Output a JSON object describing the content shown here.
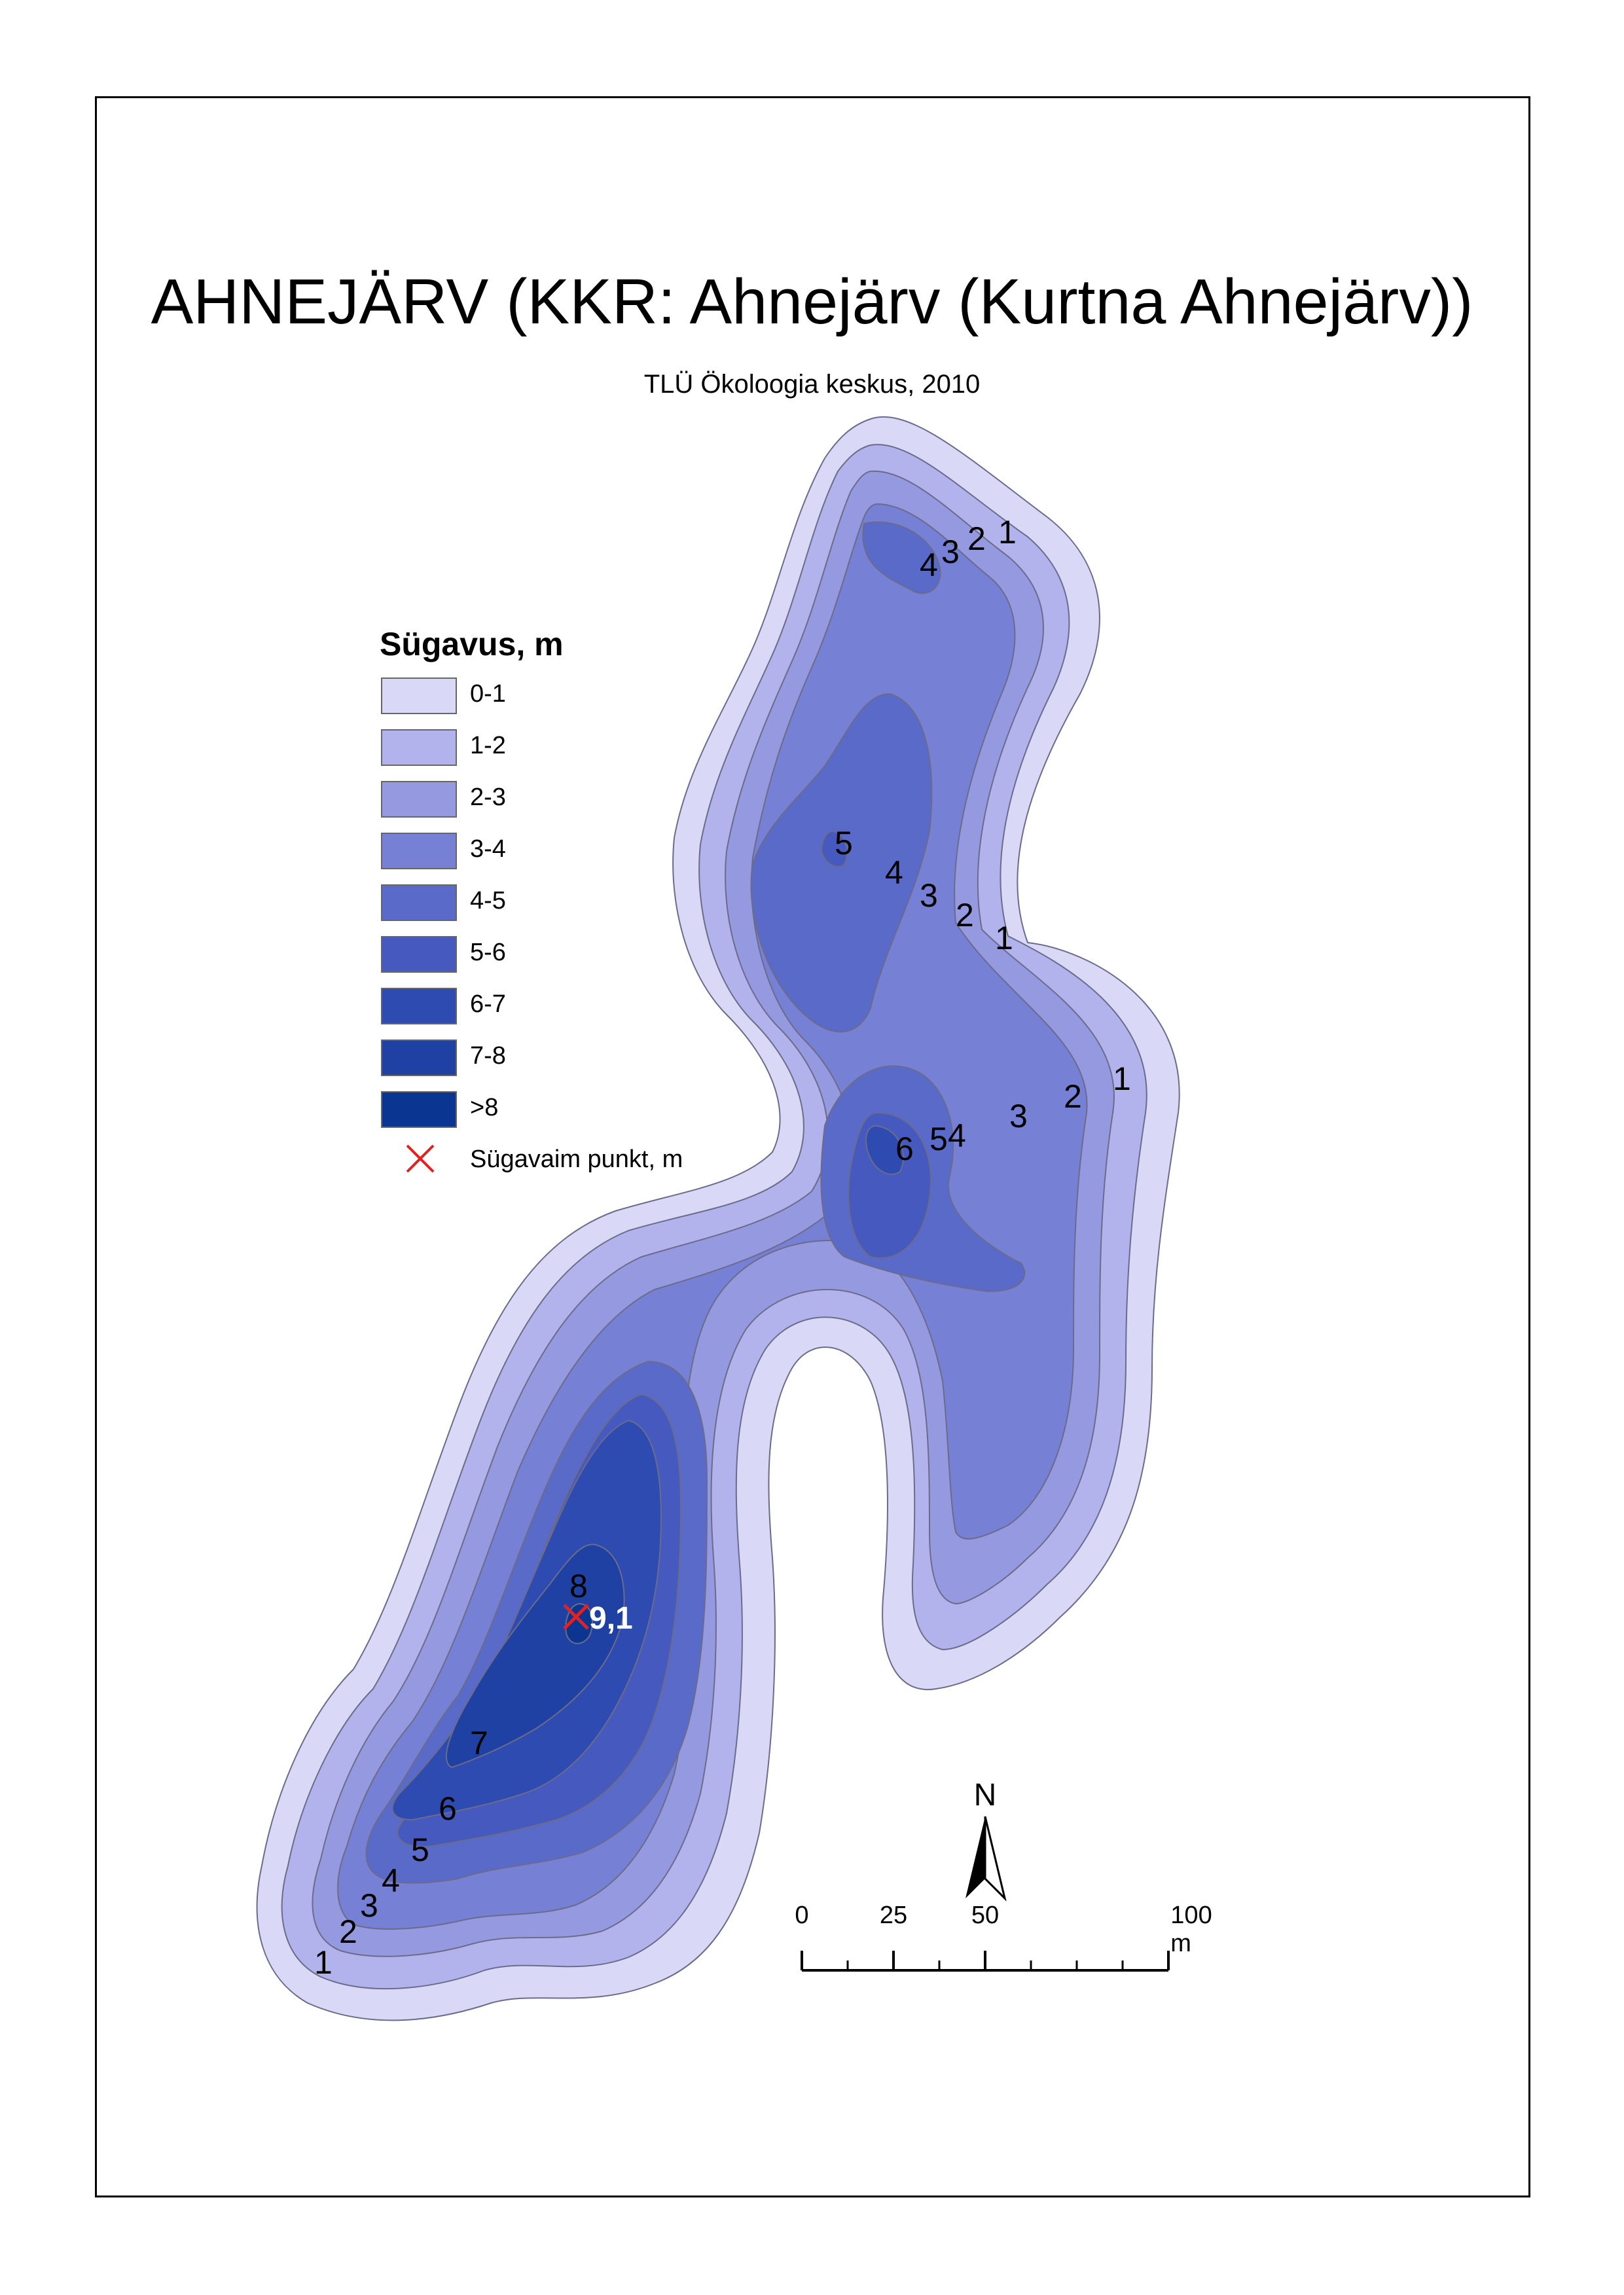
{
  "title": "AHNEJÄRV (KKR: Ahnejärv (Kurtna Ahnejärv))",
  "subtitle": "TLÜ Ökoloogia keskus, 2010",
  "legend": {
    "title": "Sügavus, m",
    "classes": [
      {
        "label": "0-1",
        "color": "#d9d9f7"
      },
      {
        "label": "1-2",
        "color": "#b2b2ec"
      },
      {
        "label": "2-3",
        "color": "#9499e0"
      },
      {
        "label": "3-4",
        "color": "#7680d4"
      },
      {
        "label": "4-5",
        "color": "#5a6ac9"
      },
      {
        "label": "5-6",
        "color": "#4559bf"
      },
      {
        "label": "6-7",
        "color": "#2e4bb1"
      },
      {
        "label": "7-8",
        "color": "#1f41a4"
      },
      {
        "label": ">8",
        "color": "#0a3591"
      }
    ],
    "deepest_point": {
      "label": "Sügavaim punkt, m",
      "color": "#e52020"
    }
  },
  "deepest_value": "9,1",
  "contour_labels": {
    "north": [
      "4",
      "3",
      "2",
      "1"
    ],
    "upper_middle": [
      "5",
      "4",
      "3",
      "2",
      "1"
    ],
    "east": [
      "6",
      "5",
      "4",
      "3",
      "2",
      "1"
    ],
    "southwest": [
      "8",
      "7",
      "6",
      "5",
      "4",
      "3",
      "2",
      "1"
    ]
  },
  "north_arrow": "N",
  "scale_bar": {
    "ticks": [
      "0",
      "25",
      "50",
      "100 m"
    ]
  }
}
